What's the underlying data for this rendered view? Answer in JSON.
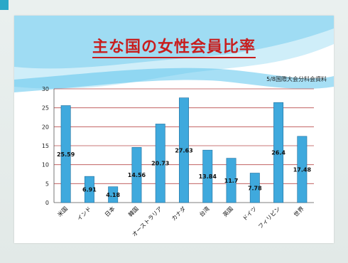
{
  "slide": {
    "title": "主な国の女性会員比率",
    "source_note": "5/8国際大会分科会資料"
  },
  "colors": {
    "bar_fill": "#3fa9dd",
    "bar_stroke": "#1f6f9e",
    "gridline": "#b84a4a",
    "title": "#c81e1e",
    "wave_light": "#bfe6f5",
    "wave_mid": "#7dcdf0"
  },
  "chart_data": {
    "type": "bar",
    "title": "",
    "xlabel": "",
    "ylabel": "",
    "ylim": [
      0,
      30
    ],
    "yticks": [
      0,
      5,
      10,
      15,
      20,
      25,
      30
    ],
    "grid": true,
    "categories": [
      "米国",
      "インド",
      "日本",
      "韓国",
      "オーストラリア",
      "カナダ",
      "台湾",
      "英国",
      "ドイツ",
      "フィリピン",
      "世界"
    ],
    "values": [
      25.59,
      6.91,
      4.18,
      14.56,
      20.73,
      27.63,
      13.84,
      11.7,
      7.78,
      26.4,
      17.48
    ],
    "value_labels": [
      "25.59",
      "6.91",
      "4.18",
      "14.56",
      "20.73",
      "27.63",
      "13.84",
      "11.7",
      "7.78",
      "26.4",
      "17.48"
    ]
  }
}
